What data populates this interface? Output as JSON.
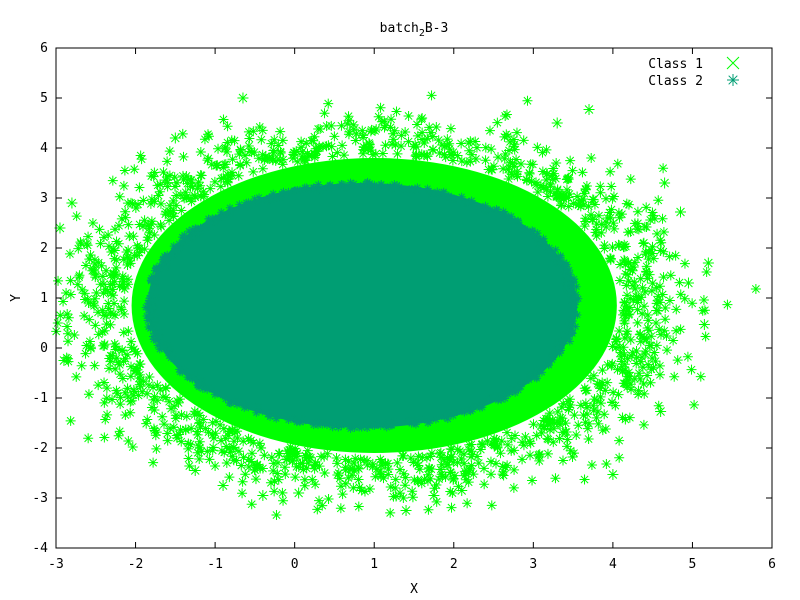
{
  "chart_data": {
    "type": "scatter",
    "title": {
      "main": "batch",
      "sub": "2",
      "rest": "B-3"
    },
    "xlabel": "X",
    "ylabel": "Y",
    "xlim": [
      -3,
      6
    ],
    "ylim": [
      -4,
      6
    ],
    "xticks": [
      -3,
      -2,
      -1,
      0,
      1,
      2,
      3,
      4,
      5,
      6
    ],
    "yticks": [
      -4,
      -3,
      -2,
      -1,
      0,
      1,
      2,
      3,
      4,
      5,
      6
    ],
    "legend_position": "top-right",
    "grid": false,
    "series": [
      {
        "name": "Class 1",
        "marker": "x",
        "color": "#00ff00",
        "distribution": {
          "center": [
            1.0,
            0.85
          ],
          "note": "dense ring of points surrounding class 2, extending to about x -2.9..5.2, y -3.3..5.0"
        },
        "outliers": [
          [
            -0.65,
            5.0
          ],
          [
            3.7,
            4.77
          ],
          [
            5.2,
            1.7
          ],
          [
            5.15,
            0.47
          ],
          [
            4.95,
            1.3
          ],
          [
            4.6,
            -1.27
          ],
          [
            4.0,
            -2.53
          ],
          [
            1.4,
            -3.25
          ],
          [
            -2.95,
            2.4
          ],
          [
            -2.8,
            2.9
          ],
          [
            -2.9,
            -0.25
          ],
          [
            -0.4,
            -2.95
          ],
          [
            -0.9,
            -2.75
          ],
          [
            1.75,
            -2.95
          ],
          [
            4.65,
            3.3
          ],
          [
            4.85,
            2.72
          ],
          [
            2.1,
            -2.85
          ],
          [
            -1.25,
            -2.45
          ],
          [
            0.05,
            -2.9
          ],
          [
            -1.5,
            4.2
          ],
          [
            3.3,
            4.5
          ],
          [
            4.55,
            0.75
          ],
          [
            4.6,
            1.95
          ]
        ]
      },
      {
        "name": "Class 2",
        "marker": "asterisk",
        "color": "#009e73",
        "distribution": {
          "center": [
            0.85,
            0.85
          ],
          "radii": [
            2.7,
            2.45
          ],
          "note": "dense filled ellipse spanning roughly x -1.9..3.4, y -1.5..3.35"
        }
      }
    ]
  }
}
